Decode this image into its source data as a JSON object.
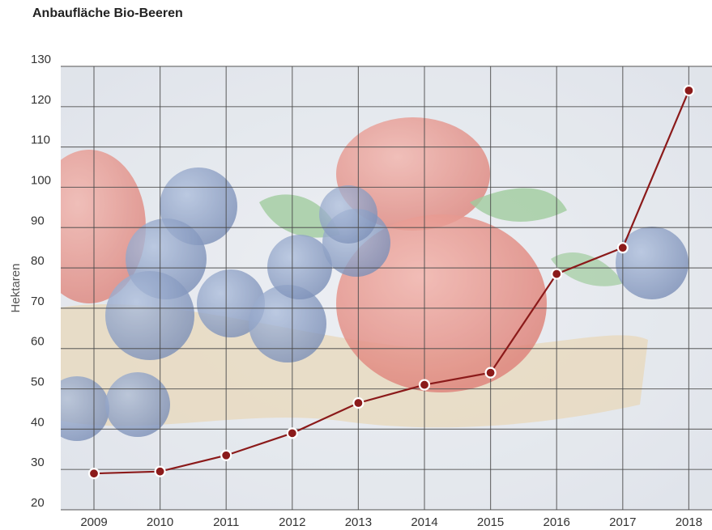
{
  "chart_data": {
    "type": "line",
    "title": "Anbaufläche Bio-Beeren",
    "xlabel": "",
    "ylabel": "Hektaren",
    "x": [
      "2009",
      "2010",
      "2011",
      "2012",
      "2013",
      "2014",
      "2015",
      "2016",
      "2017",
      "2018"
    ],
    "series": [
      {
        "values": [
          29,
          29.5,
          33.5,
          39,
          46.5,
          51,
          54,
          78.5,
          85,
          124
        ]
      }
    ],
    "ylim": [
      20,
      130
    ],
    "yticks": [
      "20",
      "30",
      "40",
      "50",
      "60",
      "70",
      "80",
      "90",
      "100",
      "110",
      "120",
      "130"
    ],
    "grid": true,
    "line_color": "#8b1a1a",
    "marker_fill": "#8b1a1a",
    "marker_stroke": "#ffffff",
    "background_image": "berries-photo"
  }
}
